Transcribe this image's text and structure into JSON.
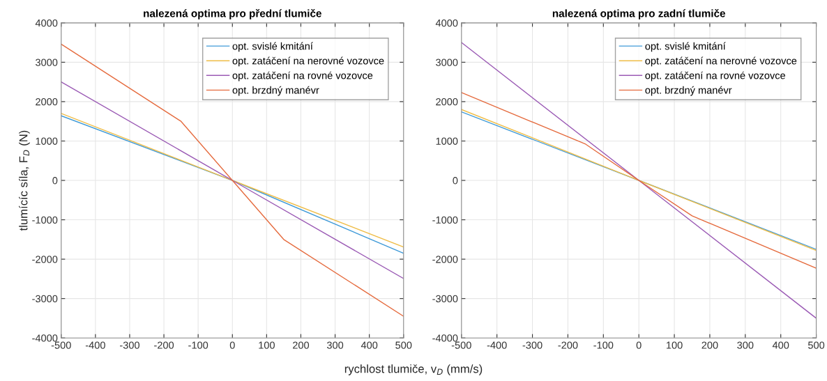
{
  "chart_data": [
    {
      "type": "line",
      "title": "nalezená optima pro přední tlumiče",
      "xlabel": "rychlost tlumiče, v$_{D}$ (mm/s)",
      "ylabel": "tlumícíc síla, F$_{D}$ (N)",
      "xlim": [
        -500,
        500
      ],
      "xticks": [
        -500,
        -400,
        -300,
        -200,
        -100,
        0,
        100,
        200,
        300,
        400,
        500
      ],
      "ylim": [
        -4000,
        4000
      ],
      "yticks": [
        -4000,
        -3000,
        -2000,
        -1000,
        0,
        1000,
        2000,
        3000,
        4000
      ],
      "grid": true,
      "legend": "top right",
      "series": [
        {
          "name": "opt. svislé kmitání",
          "color": "#3f9ad8",
          "x": [
            -500,
            0,
            500
          ],
          "values": [
            1640,
            0,
            -1850
          ]
        },
        {
          "name": "opt. zatáčení na nerovné vozovce",
          "color": "#efbd48",
          "x": [
            -500,
            0,
            500
          ],
          "values": [
            1700,
            0,
            -1690
          ]
        },
        {
          "name": "opt. zatáčení na rovné vozovce",
          "color": "#9b5bb5",
          "x": [
            -500,
            0,
            500
          ],
          "values": [
            2500,
            0,
            -2490
          ]
        },
        {
          "name": "opt. brzdný manévr",
          "color": "#e56b3e",
          "x": [
            -500,
            -150,
            0,
            150,
            500
          ],
          "values": [
            3460,
            1500,
            0,
            -1500,
            -3450
          ]
        }
      ]
    },
    {
      "type": "line",
      "title": "nalezená optima pro zadní tlumiče",
      "xlim": [
        -500,
        500
      ],
      "xticks": [
        -500,
        -400,
        -300,
        -200,
        -100,
        0,
        100,
        200,
        300,
        400,
        500
      ],
      "ylim": [
        -4000,
        4000
      ],
      "yticks": [
        -4000,
        -3000,
        -2000,
        -1000,
        0,
        1000,
        2000,
        3000,
        4000
      ],
      "grid": true,
      "legend": "top right",
      "series": [
        {
          "name": "opt. svislé kmitání",
          "color": "#3f9ad8",
          "x": [
            -500,
            0,
            500
          ],
          "values": [
            1740,
            0,
            -1750
          ]
        },
        {
          "name": "opt. zatáčení na nerovné vozovce",
          "color": "#efbd48",
          "x": [
            -500,
            0,
            500
          ],
          "values": [
            1800,
            0,
            -1780
          ]
        },
        {
          "name": "opt. zatáčení na rovné vozovce",
          "color": "#9b5bb5",
          "x": [
            -500,
            0,
            500
          ],
          "values": [
            3500,
            0,
            -3500
          ]
        },
        {
          "name": "opt. brzdný manévr",
          "color": "#e56b3e",
          "x": [
            -500,
            -150,
            0,
            150,
            500
          ],
          "values": [
            2230,
            920,
            0,
            -900,
            -2230
          ]
        }
      ]
    }
  ]
}
